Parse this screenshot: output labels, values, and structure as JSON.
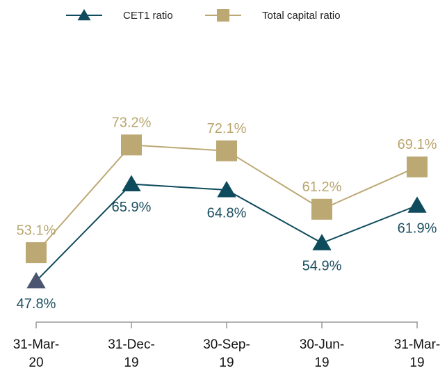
{
  "chart_data": {
    "type": "line",
    "categories": [
      "31-Mar-20",
      "31-Dec-19",
      "30-Sep-19",
      "30-Jun-19",
      "31-Mar-19"
    ],
    "series": [
      {
        "name": "CET1 ratio",
        "color": "#0e4b5c",
        "marker": "triangle",
        "marker_colors": [
          "#4b5570",
          "#0e4b5c",
          "#0e4b5c",
          "#0e4b5c",
          "#0e4b5c"
        ],
        "values": [
          47.8,
          65.9,
          64.8,
          54.9,
          61.9
        ],
        "value_labels": [
          "47.8%",
          "65.9%",
          "64.8%",
          "54.9%",
          "61.9%"
        ]
      },
      {
        "name": "Total capital ratio",
        "color": "#bca873",
        "marker": "square",
        "values": [
          53.1,
          73.2,
          72.1,
          61.2,
          69.1
        ],
        "value_labels": [
          "53.1%",
          "73.2%",
          "72.1%",
          "61.2%",
          "69.1%"
        ]
      }
    ]
  }
}
